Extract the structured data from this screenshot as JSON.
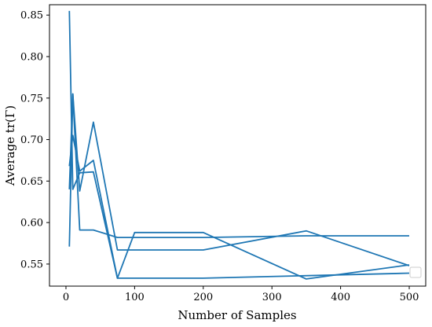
{
  "chart_data": {
    "type": "line",
    "title": "",
    "xlabel": "Number of Samples",
    "ylabel": "Average tr(Γ)",
    "xlim": [
      -24,
      524
    ],
    "ylim": [
      0.5234,
      0.8625
    ],
    "x_ticks": [
      0,
      100,
      200,
      300,
      400,
      500
    ],
    "y_ticks": [
      0.55,
      0.6,
      0.65,
      0.7,
      0.75,
      0.8,
      0.85
    ],
    "grid": false,
    "legend": "lower right (empty)",
    "line_color": "#1f77b4",
    "series": [
      {
        "x": [
          5,
          10,
          20,
          40,
          75,
          200,
          500
        ],
        "y": [
          0.855,
          0.64,
          0.66,
          0.661,
          0.533,
          0.533,
          0.539
        ]
      },
      {
        "x": [
          5,
          10,
          20,
          40,
          75,
          100,
          200,
          350,
          500
        ],
        "y": [
          0.64,
          0.755,
          0.591,
          0.591,
          0.582,
          0.582,
          0.582,
          0.584,
          0.584
        ]
      },
      {
        "x": [
          5,
          10,
          20,
          40,
          75,
          200,
          350,
          500
        ],
        "y": [
          0.571,
          0.755,
          0.638,
          0.721,
          0.567,
          0.567,
          0.59,
          0.548
        ]
      },
      {
        "x": [
          5,
          10,
          20,
          40,
          75,
          100,
          200,
          350,
          500
        ],
        "y": [
          0.668,
          0.705,
          0.662,
          0.675,
          0.533,
          0.588,
          0.588,
          0.532,
          0.549
        ]
      }
    ]
  }
}
